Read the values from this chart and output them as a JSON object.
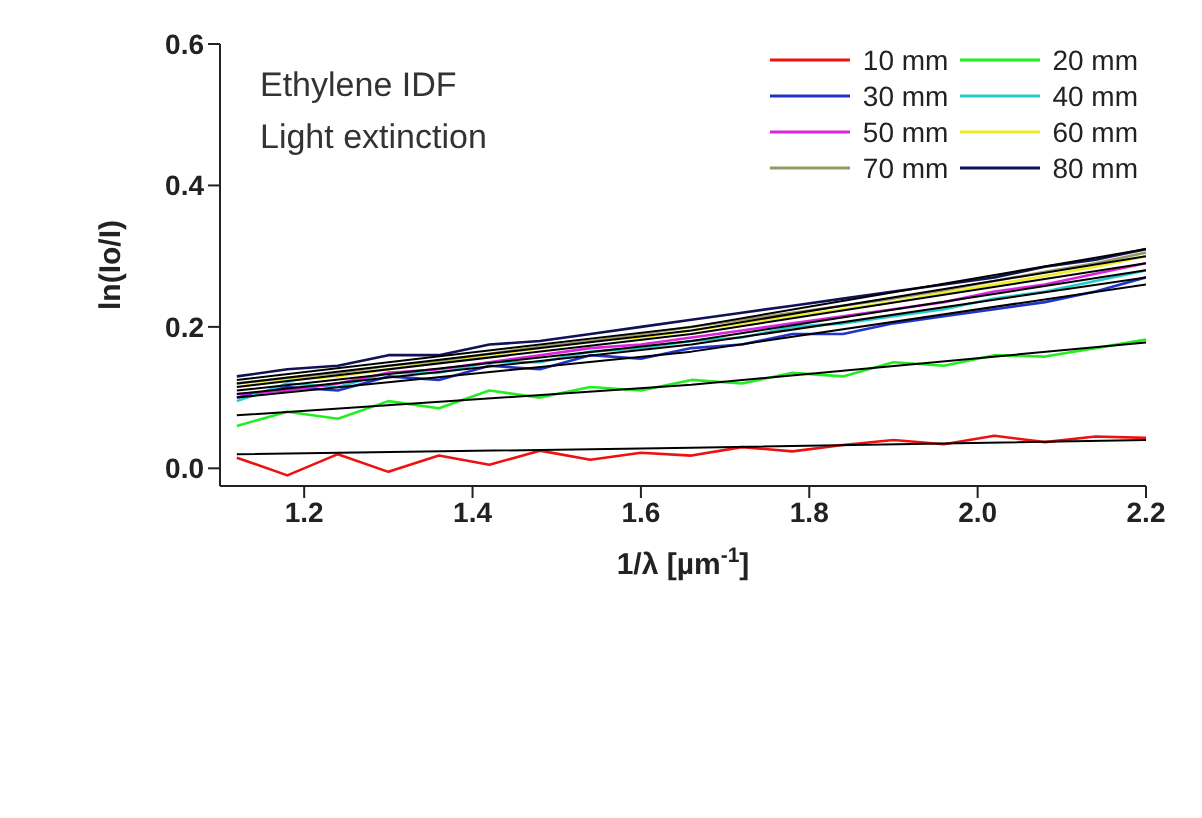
{
  "chart_data": {
    "type": "line",
    "xlabel": "1/λ [µm$^{-1}$]",
    "ylabel": "ln(Io/I)",
    "annotations": [
      "Ethylene IDF",
      "Light extinction"
    ],
    "xlim": [
      1.1,
      2.2
    ],
    "xticks": [
      1.2,
      1.4,
      1.6,
      1.8,
      {
        "value": 2.0,
        "label": "2.0"
      },
      2.2
    ],
    "ylim": [
      -0.025,
      0.6
    ],
    "yticks": [
      {
        "value": 0,
        "label": "0.0"
      },
      0.2,
      0.4,
      0.6
    ],
    "grid": false,
    "legend": "top right",
    "marker": "none",
    "line_style": "solid",
    "x": [
      1.12,
      1.18,
      1.24,
      1.3,
      1.36,
      1.42,
      1.48,
      1.54,
      1.6,
      1.66,
      1.72,
      1.78,
      1.84,
      1.9,
      1.96,
      2.02,
      2.08,
      2.14,
      2.2
    ],
    "series": [
      {
        "name": "10 mm",
        "color": "#ee1111",
        "values": [
          0.015,
          -0.01,
          0.02,
          -0.005,
          0.018,
          0.005,
          0.025,
          0.012,
          0.022,
          0.018,
          0.03,
          0.024,
          0.033,
          0.04,
          0.034,
          0.046,
          0.037,
          0.045,
          0.043
        ]
      },
      {
        "name": "20 mm",
        "color": "#22ee22",
        "values": [
          0.06,
          0.08,
          0.07,
          0.095,
          0.085,
          0.11,
          0.1,
          0.115,
          0.11,
          0.125,
          0.12,
          0.135,
          0.13,
          0.15,
          0.145,
          0.16,
          0.158,
          0.17,
          0.182
        ]
      },
      {
        "name": "30 mm",
        "color": "#2233cc",
        "values": [
          0.1,
          0.115,
          0.11,
          0.13,
          0.125,
          0.145,
          0.14,
          0.16,
          0.155,
          0.17,
          0.175,
          0.19,
          0.19,
          0.205,
          0.215,
          0.225,
          0.235,
          0.25,
          0.27
        ]
      },
      {
        "name": "40 mm",
        "color": "#22cccc",
        "values": [
          0.095,
          0.12,
          0.115,
          0.135,
          0.135,
          0.15,
          0.15,
          0.165,
          0.17,
          0.18,
          0.185,
          0.2,
          0.205,
          0.215,
          0.225,
          0.24,
          0.25,
          0.265,
          0.28
        ]
      },
      {
        "name": "50 mm",
        "color": "#dd22dd",
        "values": [
          0.105,
          0.11,
          0.12,
          0.135,
          0.14,
          0.15,
          0.16,
          0.17,
          0.175,
          0.185,
          0.195,
          0.205,
          0.215,
          0.225,
          0.235,
          0.25,
          0.26,
          0.275,
          0.29
        ]
      },
      {
        "name": "60 mm",
        "color": "#eeee22",
        "values": [
          0.115,
          0.125,
          0.13,
          0.14,
          0.15,
          0.16,
          0.17,
          0.18,
          0.185,
          0.195,
          0.205,
          0.215,
          0.225,
          0.235,
          0.248,
          0.26,
          0.272,
          0.285,
          0.3
        ]
      },
      {
        "name": "70 mm",
        "color": "#999966",
        "values": [
          0.12,
          0.128,
          0.135,
          0.145,
          0.152,
          0.162,
          0.172,
          0.18,
          0.19,
          0.2,
          0.21,
          0.22,
          0.23,
          0.24,
          0.252,
          0.265,
          0.278,
          0.29,
          0.305
        ]
      },
      {
        "name": "80 mm",
        "color": "#111155",
        "values": [
          0.13,
          0.14,
          0.145,
          0.16,
          0.16,
          0.175,
          0.18,
          0.19,
          0.2,
          0.21,
          0.22,
          0.23,
          0.24,
          0.25,
          0.26,
          0.27,
          0.285,
          0.295,
          0.31
        ]
      },
      {
        "color": "#000000",
        "x": [
          1.12,
          1.66,
          2.2
        ],
        "values": [
          0.02,
          0.029,
          0.04
        ]
      },
      {
        "color": "#000000",
        "x": [
          1.12,
          1.66,
          2.2
        ],
        "values": [
          0.075,
          0.118,
          0.178
        ]
      },
      {
        "color": "#000000",
        "x": [
          1.12,
          1.66,
          2.2
        ],
        "values": [
          0.1,
          0.165,
          0.26
        ]
      },
      {
        "color": "#000000",
        "x": [
          1.12,
          1.66,
          2.2
        ],
        "values": [
          0.105,
          0.175,
          0.27
        ]
      },
      {
        "color": "#000000",
        "x": [
          1.12,
          1.66,
          2.2
        ],
        "values": [
          0.11,
          0.18,
          0.28
        ]
      },
      {
        "color": "#000000",
        "x": [
          1.12,
          1.66,
          2.2
        ],
        "values": [
          0.115,
          0.19,
          0.29
        ]
      },
      {
        "color": "#000000",
        "x": [
          1.12,
          1.66,
          2.2
        ],
        "values": [
          0.12,
          0.195,
          0.3
        ]
      },
      {
        "color": "#000000",
        "x": [
          1.12,
          1.66,
          2.2
        ],
        "values": [
          0.125,
          0.2,
          0.31
        ]
      }
    ]
  }
}
